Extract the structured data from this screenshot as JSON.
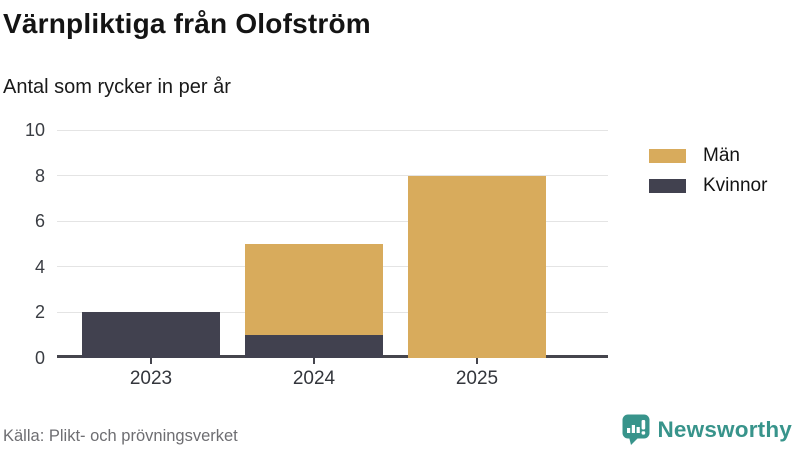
{
  "header": {
    "title": "Värnpliktiga från Olofström",
    "subtitle": "Antal som rycker in per år"
  },
  "chart_data": {
    "type": "bar",
    "stacked": true,
    "title": "Värnpliktiga från Olofström",
    "subtitle": "Antal som rycker in per år",
    "categories": [
      "2023",
      "2024",
      "2025"
    ],
    "series": [
      {
        "name": "Kvinnor",
        "color": "#41414f",
        "values": [
          2,
          1,
          0
        ]
      },
      {
        "name": "Män",
        "color": "#d8ab5c",
        "values": [
          0,
          4,
          8
        ]
      }
    ],
    "legend": [
      {
        "label": "Män",
        "color": "#d8ab5c"
      },
      {
        "label": "Kvinnor",
        "color": "#41414f"
      }
    ],
    "legend_position": "right",
    "xlabel": "",
    "ylabel": "",
    "ylim": [
      0,
      10
    ],
    "yticks": [
      0,
      2,
      4,
      6,
      8,
      10
    ],
    "grid": true,
    "colors": {
      "axis": "#45454d",
      "gridline": "#e4e4e4",
      "tick_text": "#3a3d43"
    }
  },
  "footer": {
    "source": "Källa: Plikt- och prövningsverket",
    "brand": "Newsworthy",
    "brand_color": "#38948b"
  }
}
